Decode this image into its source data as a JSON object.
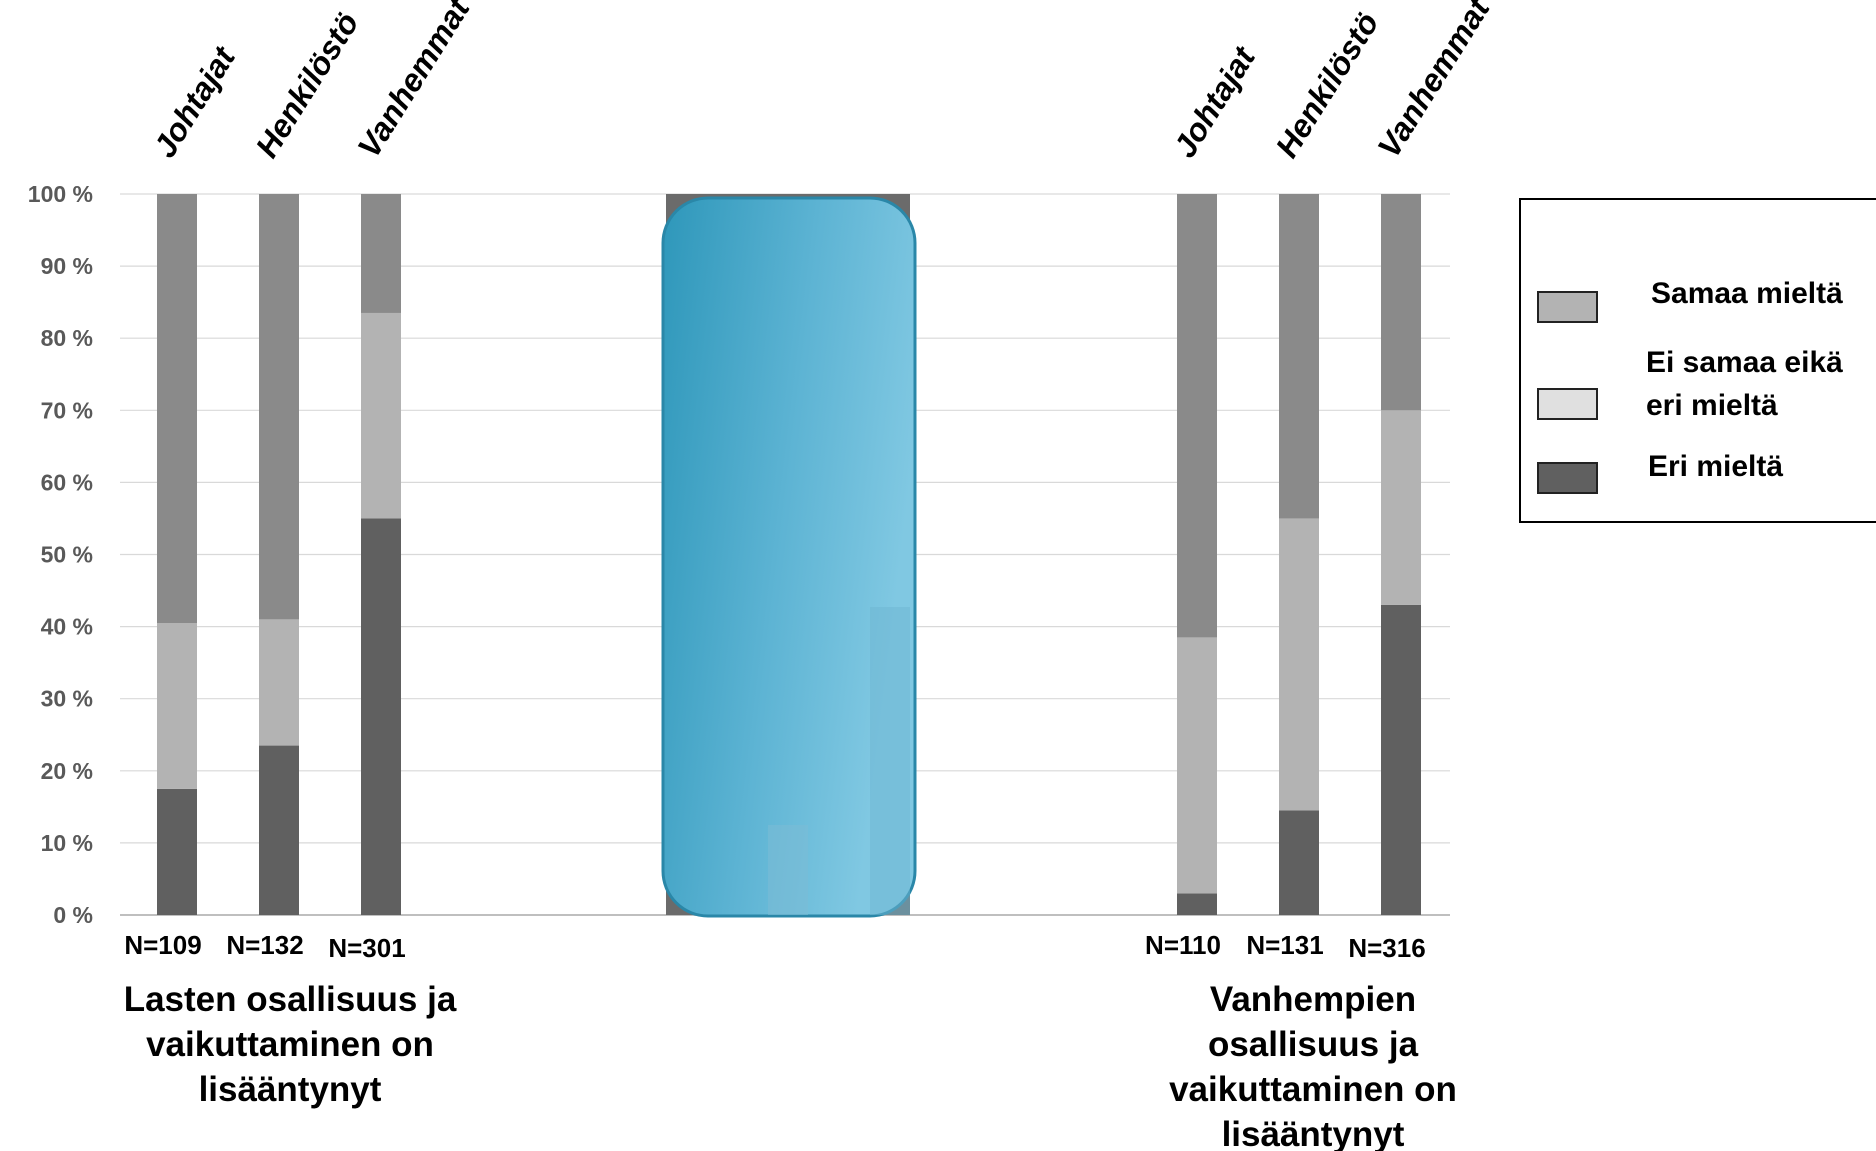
{
  "chart_data": {
    "type": "bar",
    "stacked": true,
    "yaxis": {
      "ylim": [
        0,
        100
      ],
      "ticks": [
        "0 %",
        "10 %",
        "20 %",
        "30 %",
        "40 %",
        "50 %",
        "60 %",
        "70 %",
        "80 %",
        "90 %",
        "100 %"
      ],
      "grid": true
    },
    "legend": {
      "placement": "right",
      "items": [
        {
          "label": "Samaa mieltä",
          "color": "#B3B3B3"
        },
        {
          "label_lines": [
            "Ei samaa eikä",
            " eri mieltä"
          ],
          "color": "#E0E0E0"
        },
        {
          "label": "Eri mieltä",
          "color": "#606060"
        }
      ]
    },
    "colors": {
      "eri_mielta": "#606060",
      "ei_samaa_eika": "#B3B3B3",
      "samaa_mielta": "#8A8A8A",
      "overlay": "#3EA3C4"
    },
    "groups": [
      {
        "title_lines": [
          "Lasten osallisuus ja",
          "vaikuttaminen on",
          "lisääntynyt"
        ],
        "bars": [
          {
            "category": "Johtajat",
            "n": "N=109",
            "values": {
              "eri_mielta": 17.5,
              "ei_samaa_eika": 23,
              "samaa_mielta": 59.5
            }
          },
          {
            "category": "Henkilöstö",
            "n": "N=132",
            "values": {
              "eri_mielta": 23.5,
              "ei_samaa_eika": 17.5,
              "samaa_mielta": 59
            }
          },
          {
            "category": "Vanhemmat",
            "n": "N=301",
            "values": {
              "eri_mielta": 55,
              "ei_samaa_eika": 28.5,
              "samaa_mielta": 16.5
            }
          }
        ]
      },
      {
        "title_lines": [
          "Vanhempien",
          "osallisuus ja",
          "vaikuttaminen on",
          "lisääntynyt"
        ],
        "bars": [
          {
            "category": "Johtajat",
            "n": "N=110",
            "values": {
              "eri_mielta": 3,
              "ei_samaa_eika": 35.5,
              "samaa_mielta": 61.5
            }
          },
          {
            "category": "Henkilöstö",
            "n": "N=131",
            "values": {
              "eri_mielta": 14.5,
              "ei_samaa_eika": 40.5,
              "samaa_mielta": 45
            }
          },
          {
            "category": "Vanhemmat",
            "n": "N=316",
            "values": {
              "eri_mielta": 43,
              "ei_samaa_eika": 27,
              "samaa_mielta": 30
            }
          }
        ]
      }
    ]
  }
}
